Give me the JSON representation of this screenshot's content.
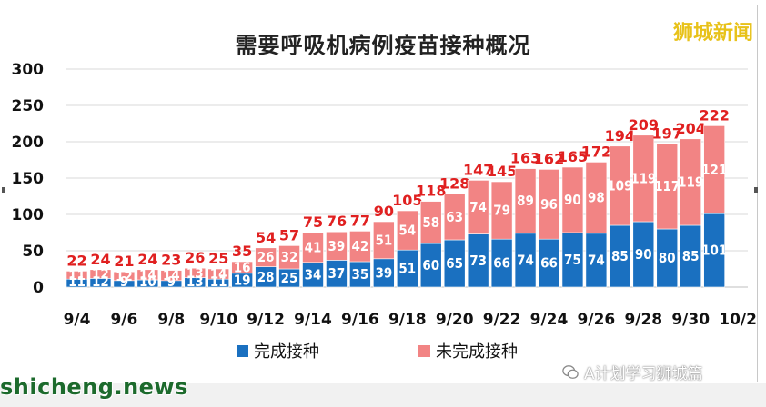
{
  "brand": "狮城新闻",
  "wechat_label": "A计划学习狮城篇",
  "watermark": "shicheng.news",
  "chart_data": {
    "type": "bar",
    "stacked": true,
    "title": "需要呼吸机病例疫苗接种概况",
    "categories": [
      "9/4",
      "9/5",
      "9/6",
      "9/7",
      "9/8",
      "9/9",
      "9/10",
      "9/11",
      "9/12",
      "9/13",
      "9/14",
      "9/15",
      "9/16",
      "9/17",
      "9/18",
      "9/19",
      "9/20",
      "9/21",
      "9/22",
      "9/23",
      "9/24",
      "9/25",
      "9/26",
      "9/27",
      "9/28",
      "9/29",
      "9/30",
      "10/1"
    ],
    "x_tick_labels": [
      "9/4",
      "9/6",
      "9/8",
      "9/10",
      "9/12",
      "9/14",
      "9/16",
      "9/18",
      "9/20",
      "9/22",
      "9/24",
      "9/26",
      "9/28",
      "9/30",
      "10/2"
    ],
    "ylim": [
      0,
      300
    ],
    "yticks": [
      0,
      50,
      100,
      150,
      200,
      250,
      300
    ],
    "series": [
      {
        "name": "完成接种",
        "color": "#1a70c0",
        "values": [
          11,
          12,
          9,
          10,
          9,
          13,
          11,
          19,
          28,
          25,
          34,
          37,
          35,
          39,
          51,
          60,
          65,
          73,
          66,
          74,
          66,
          75,
          74,
          85,
          90,
          80,
          85,
          101
        ]
      },
      {
        "name": "未完成接种",
        "color": "#f28484",
        "values": [
          11,
          12,
          12,
          14,
          14,
          13,
          14,
          16,
          26,
          32,
          41,
          39,
          42,
          51,
          54,
          58,
          63,
          74,
          79,
          89,
          96,
          90,
          98,
          109,
          119,
          117,
          119,
          121
        ]
      }
    ],
    "totals": [
      22,
      24,
      21,
      24,
      23,
      26,
      25,
      35,
      54,
      57,
      75,
      76,
      77,
      90,
      105,
      118,
      128,
      147,
      145,
      163,
      162,
      165,
      172,
      194,
      209,
      197,
      204,
      222
    ],
    "total_label_color": "#e02020",
    "gridlines": true,
    "legend_position": "bottom"
  }
}
